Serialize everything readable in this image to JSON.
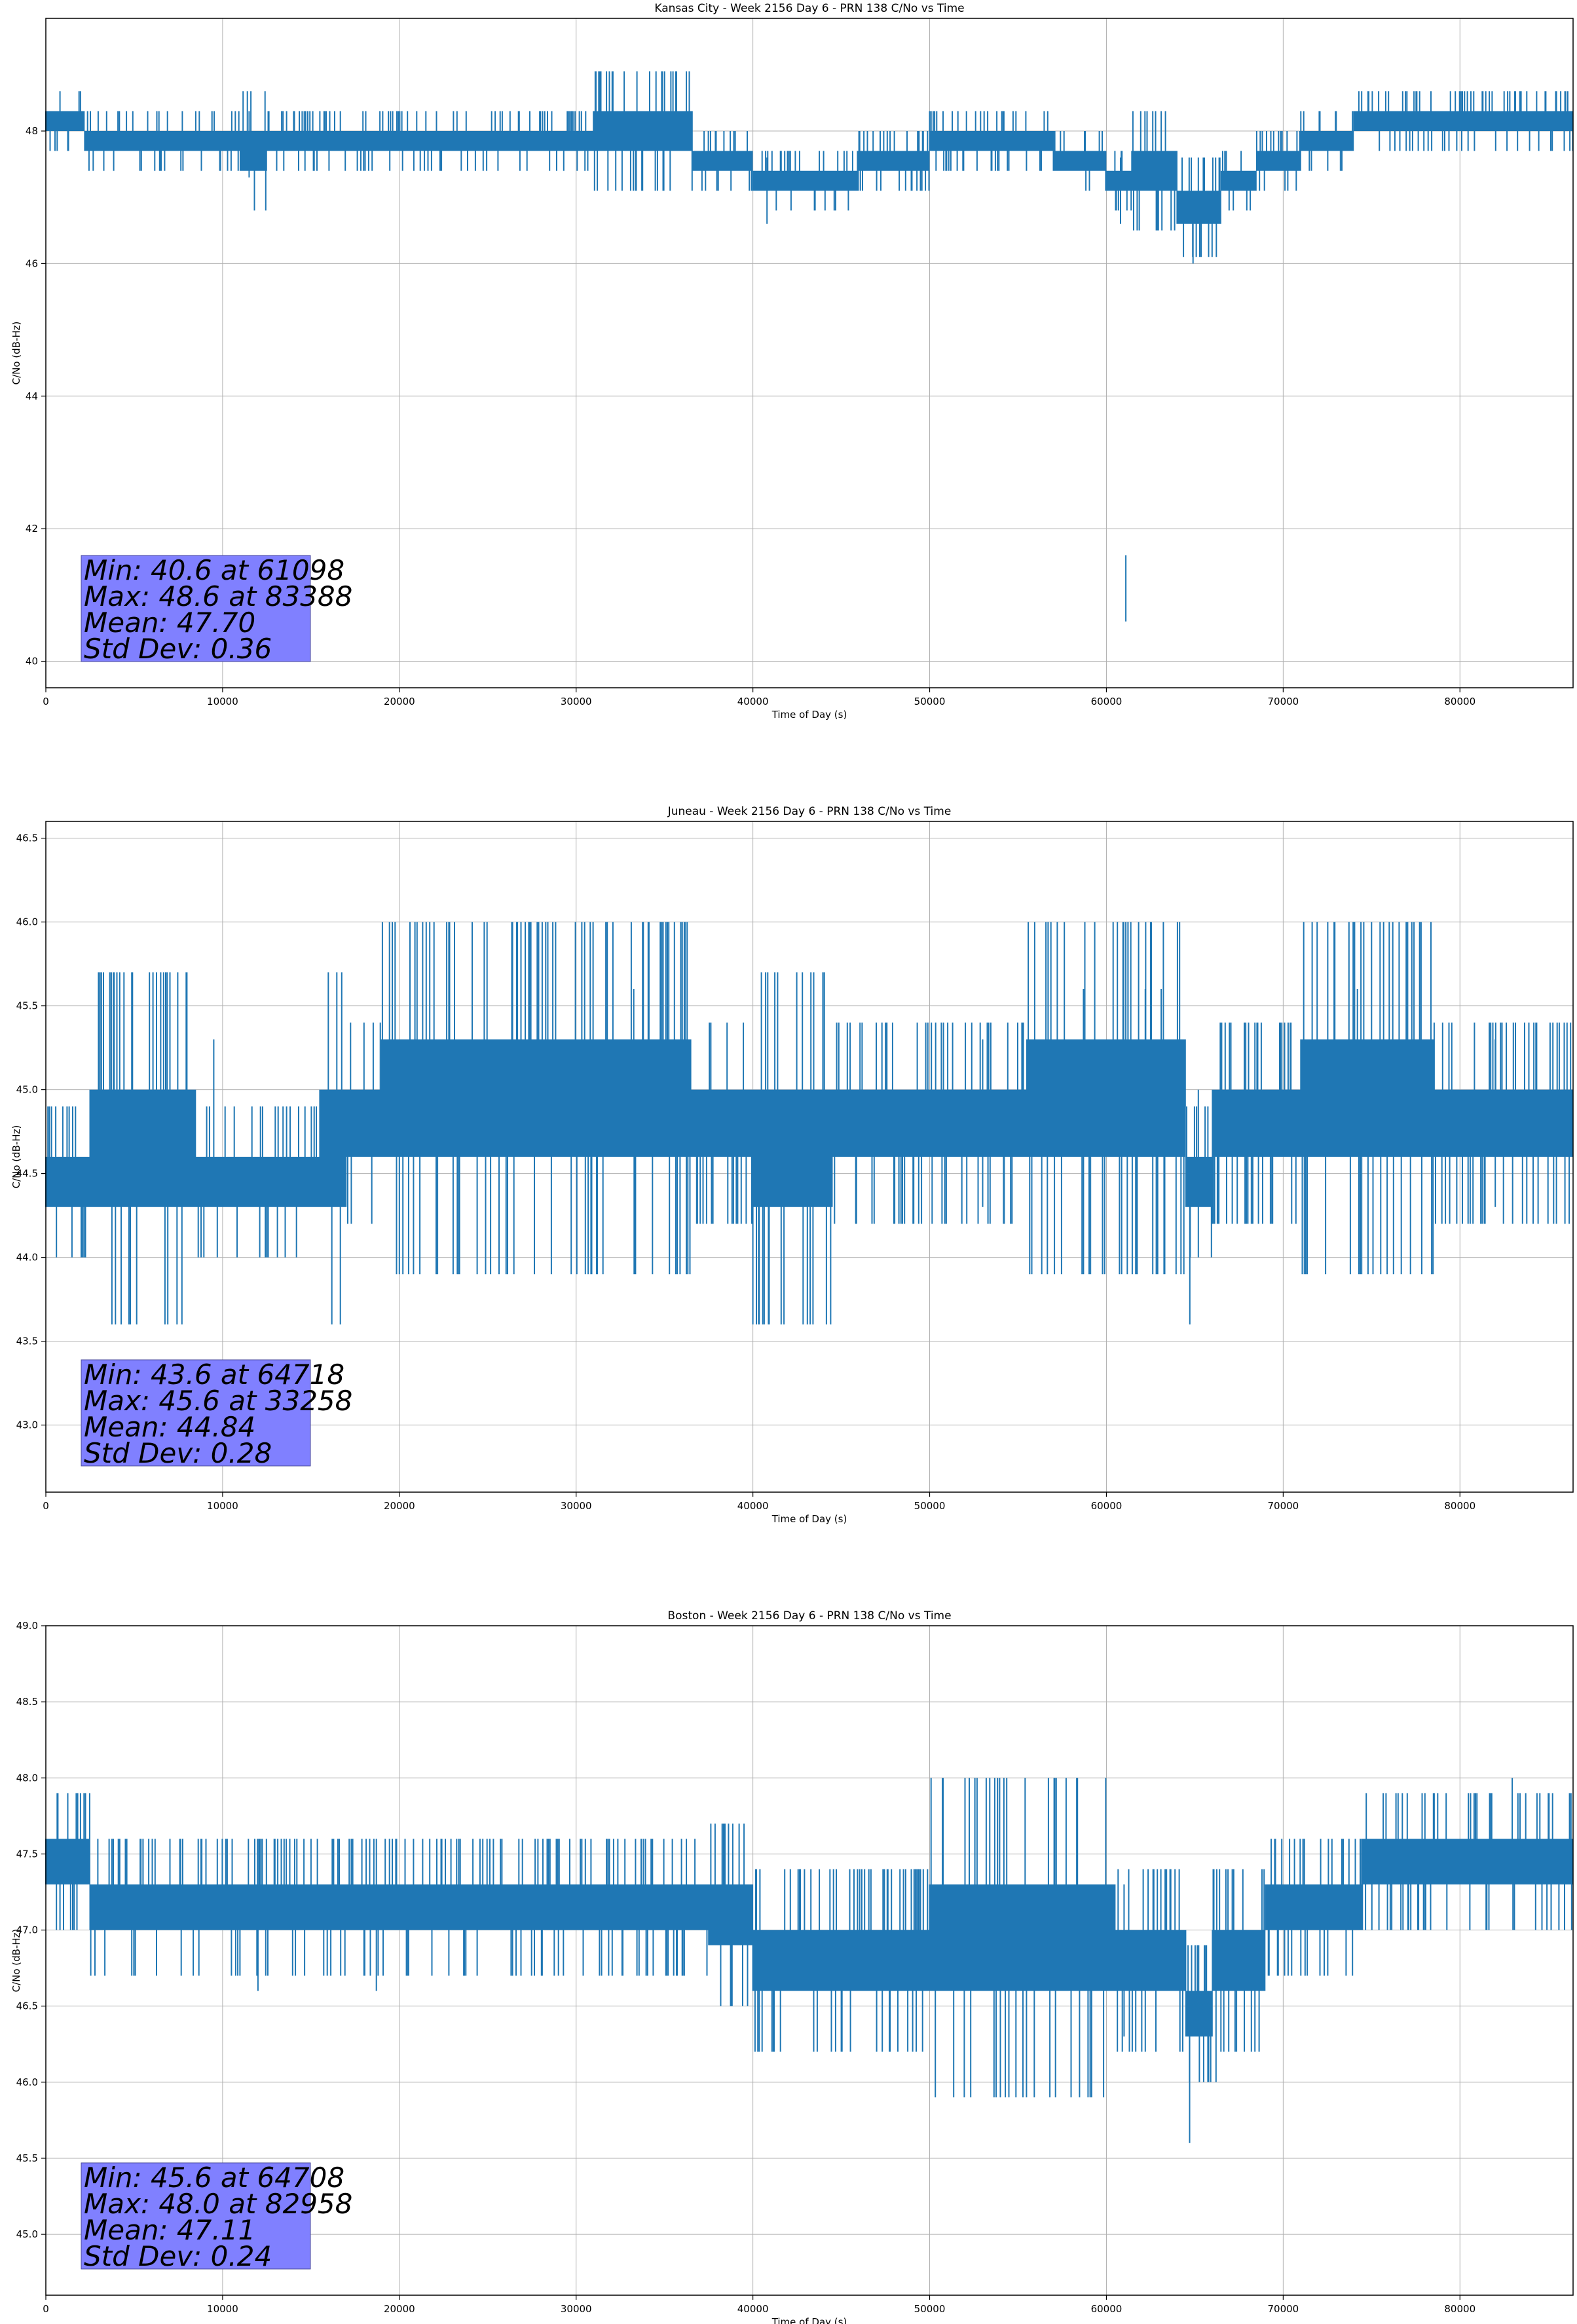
{
  "chart_data": [
    {
      "type": "line",
      "title": "Kansas City - Week 2156 Day 6 - PRN 138 C/No vs Time",
      "xlabel": "Time of Day (s)",
      "ylabel": "C/No (dB-Hz)",
      "xlim": [
        0,
        86400
      ],
      "ylim": [
        39.6,
        49.7
      ],
      "xticks": [
        0,
        10000,
        20000,
        30000,
        40000,
        50000,
        60000,
        70000,
        80000
      ],
      "yticks": [
        40,
        42,
        44,
        46,
        48
      ],
      "ytick_labels": [
        "40",
        "42",
        "44",
        "46",
        "48"
      ],
      "grid": true,
      "line_color": "#1f77b4",
      "stats_box_color": "#8080ff",
      "stats": [
        "Min: 40.6 at 61098",
        "Max: 48.6 at 83388",
        "Mean: 47.70",
        "Std Dev: 0.36"
      ],
      "series": [
        {
          "bands": [
            [
              0,
              2200,
              48.0,
              48.3
            ],
            [
              2200,
              11000,
              47.7,
              48.0
            ],
            [
              11000,
              12500,
              47.4,
              48.0
            ],
            [
              12500,
              31000,
              47.7,
              48.0
            ],
            [
              31000,
              36600,
              47.7,
              48.3
            ],
            [
              36600,
              38000,
              47.4,
              47.7
            ],
            [
              38000,
              40000,
              47.4,
              47.7
            ],
            [
              40000,
              46000,
              47.1,
              47.4
            ],
            [
              46000,
              50000,
              47.4,
              47.7
            ],
            [
              50000,
              57000,
              47.7,
              48.0
            ],
            [
              57000,
              60000,
              47.4,
              47.7
            ],
            [
              60000,
              61500,
              47.1,
              47.4
            ],
            [
              61500,
              64000,
              47.1,
              47.7
            ],
            [
              64000,
              65500,
              46.6,
              47.1
            ],
            [
              65500,
              66500,
              46.6,
              47.1
            ],
            [
              66500,
              68500,
              47.1,
              47.4
            ],
            [
              68500,
              71000,
              47.4,
              47.7
            ],
            [
              71000,
              74000,
              47.7,
              48.0
            ],
            [
              74000,
              78500,
              48.0,
              48.3
            ],
            [
              78500,
              86400,
              48.0,
              48.3
            ]
          ],
          "dips": [
            [
              60800,
              46.6
            ],
            [
              61098,
              40.6
            ],
            [
              64900,
              46.0
            ],
            [
              40800,
              46.6
            ],
            [
              11500,
              47.3
            ]
          ],
          "peaks": [
            [
              83388,
              48.6
            ]
          ]
        }
      ]
    },
    {
      "type": "line",
      "title": "Juneau - Week 2156 Day 6 - PRN 138 C/No vs Time",
      "xlabel": "Time of Day (s)",
      "ylabel": "C/No (dB-Hz)",
      "xlim": [
        0,
        86400
      ],
      "ylim": [
        42.6,
        46.6
      ],
      "xticks": [
        0,
        10000,
        20000,
        30000,
        40000,
        50000,
        60000,
        70000,
        80000
      ],
      "yticks": [
        43.0,
        43.5,
        44.0,
        44.5,
        45.0,
        45.5,
        46.0,
        46.5
      ],
      "ytick_labels": [
        "43.0",
        "43.5",
        "44.0",
        "44.5",
        "45.0",
        "45.5",
        "46.0",
        "46.5"
      ],
      "grid": true,
      "line_color": "#1f77b4",
      "stats_box_color": "#8080ff",
      "stats": [
        "Min: 43.6 at 64718",
        "Max: 45.6 at 33258",
        "Mean: 44.84",
        "Std Dev: 0.28"
      ],
      "series": [
        {
          "bands": [
            [
              0,
              2500,
              44.3,
              44.6
            ],
            [
              2500,
              8500,
              44.3,
              45.0
            ],
            [
              8500,
              15500,
              44.3,
              44.6
            ],
            [
              15500,
              17000,
              44.3,
              45.0
            ],
            [
              17000,
              19000,
              44.6,
              45.0
            ],
            [
              19000,
              36500,
              44.6,
              45.3
            ],
            [
              36500,
              40000,
              44.6,
              45.0
            ],
            [
              40000,
              44500,
              44.3,
              45.0
            ],
            [
              44500,
              55500,
              44.6,
              45.0
            ],
            [
              55500,
              64500,
              44.6,
              45.3
            ],
            [
              64500,
              66000,
              44.3,
              44.6
            ],
            [
              66000,
              71000,
              44.6,
              45.0
            ],
            [
              71000,
              78500,
              44.6,
              45.3
            ],
            [
              78500,
              86400,
              44.6,
              45.0
            ]
          ],
          "dips": [
            [
              64718,
              43.6
            ],
            [
              65200,
              44.0
            ],
            [
              53000,
              44.3
            ],
            [
              82000,
              44.3
            ],
            [
              9500,
              44.3
            ]
          ],
          "peaks": [
            [
              33258,
              45.6
            ],
            [
              58700,
              45.6
            ],
            [
              62200,
              45.6
            ],
            [
              63100,
              45.6
            ],
            [
              74200,
              45.6
            ]
          ]
        }
      ]
    },
    {
      "type": "line",
      "title": "Boston - Week 2156 Day 6 - PRN 138 C/No vs Time",
      "xlabel": "Time of Day (s)",
      "ylabel": "C/No (dB-Hz)",
      "xlim": [
        0,
        86400
      ],
      "ylim": [
        44.6,
        49.0
      ],
      "xticks": [
        0,
        10000,
        20000,
        30000,
        40000,
        50000,
        60000,
        70000,
        80000
      ],
      "yticks": [
        45.0,
        45.5,
        46.0,
        46.5,
        47.0,
        47.5,
        48.0,
        48.5,
        49.0
      ],
      "ytick_labels": [
        "45.0",
        "45.5",
        "46.0",
        "46.5",
        "47.0",
        "47.5",
        "48.0",
        "48.5",
        "49.0"
      ],
      "grid": true,
      "line_color": "#1f77b4",
      "stats_box_color": "#8080ff",
      "stats": [
        "Min: 45.6 at 64708",
        "Max: 48.0 at 82958",
        "Mean: 47.11",
        "Std Dev: 0.24"
      ],
      "series": [
        {
          "bands": [
            [
              0,
              2500,
              47.3,
              47.6
            ],
            [
              2500,
              12000,
              47.0,
              47.3
            ],
            [
              12000,
              37500,
              47.0,
              47.3
            ],
            [
              37500,
              40000,
              46.9,
              47.3
            ],
            [
              40000,
              50000,
              46.6,
              47.0
            ],
            [
              50000,
              60500,
              46.6,
              47.3
            ],
            [
              60500,
              62000,
              46.6,
              47.0
            ],
            [
              62000,
              64500,
              46.6,
              47.0
            ],
            [
              64500,
              66000,
              46.3,
              46.6
            ],
            [
              66000,
              69000,
              46.6,
              47.0
            ],
            [
              69000,
              74500,
              47.0,
              47.3
            ],
            [
              74500,
              80000,
              47.3,
              47.6
            ],
            [
              80000,
              86400,
              47.3,
              47.6
            ]
          ],
          "dips": [
            [
              64708,
              45.6
            ],
            [
              12000,
              46.6
            ],
            [
              18700,
              46.6
            ],
            [
              61000,
              46.3
            ],
            [
              66200,
              46.0
            ]
          ],
          "peaks": [
            [
              82958,
              48.0
            ]
          ]
        }
      ]
    }
  ]
}
